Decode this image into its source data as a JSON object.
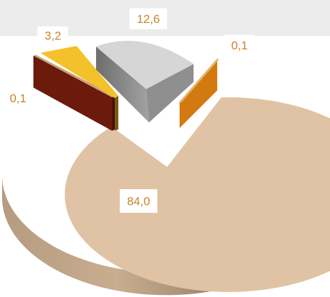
{
  "chart_data": {
    "type": "pie",
    "style": "3d-exploded",
    "title": "",
    "legend": "none",
    "slices": [
      {
        "value": 84.0,
        "label": "84,0",
        "color": "#dfc3a4"
      },
      {
        "value": 0.1,
        "label": "0,1",
        "color": "#6b1a0c"
      },
      {
        "value": 3.2,
        "label": "3,2",
        "color": "#f3c12b"
      },
      {
        "value": 12.6,
        "label": "12,6",
        "color": "#d6d6d6"
      },
      {
        "value": 0.1,
        "label": "0,1",
        "color": "#d27a0f"
      }
    ]
  }
}
